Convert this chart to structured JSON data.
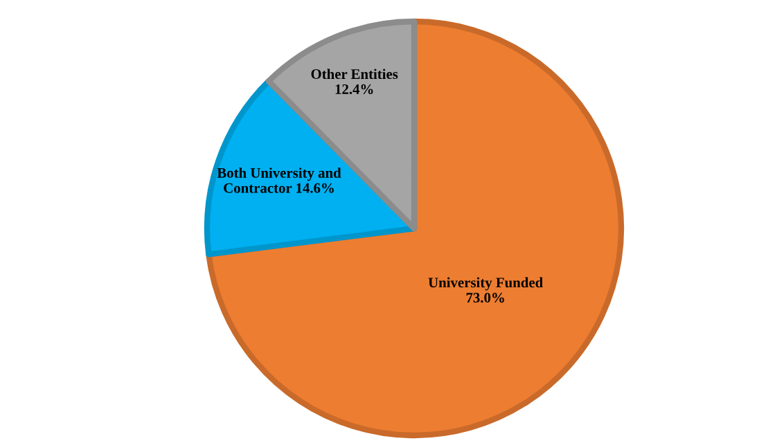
{
  "chart_data": {
    "type": "pie",
    "categories": [
      "University Funded",
      "Both University and Contractor",
      "Other Entities"
    ],
    "values": [
      73.0,
      14.6,
      12.4
    ],
    "value_labels": [
      "73.0%",
      "14.6%",
      "12.4%"
    ],
    "colors": [
      "#ed7d31",
      "#00b0f0",
      "#a5a5a5"
    ],
    "legend": false
  }
}
